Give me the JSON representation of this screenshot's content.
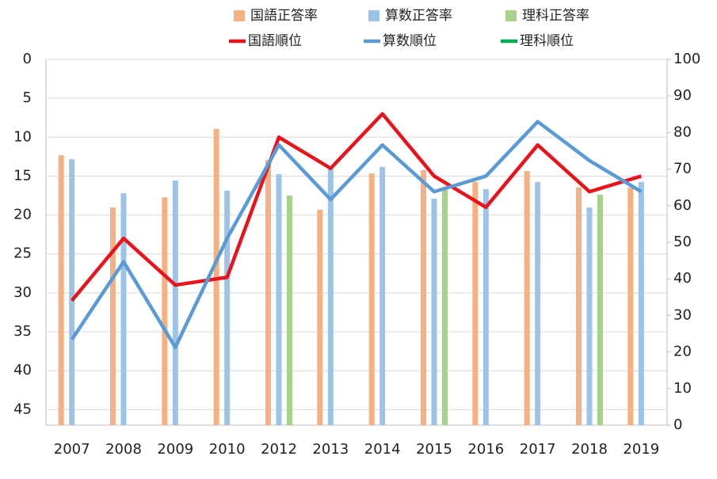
{
  "chart_data": {
    "type": "combo",
    "categories": [
      "2007",
      "2008",
      "2009",
      "2010",
      "2012",
      "2013",
      "2014",
      "2015",
      "2016",
      "2017",
      "2018",
      "2019"
    ],
    "ylim": [
      0,
      47
    ],
    "y_inverted": true,
    "yticks": [
      0,
      5,
      10,
      15,
      20,
      25,
      30,
      35,
      40,
      45
    ],
    "y2lim": [
      0,
      100
    ],
    "y2ticks": [
      0,
      10,
      20,
      30,
      40,
      50,
      60,
      70,
      80,
      90,
      100
    ],
    "grid": true,
    "series": [
      {
        "name": "国語正答率",
        "type": "bar",
        "axis": "y2",
        "color": "#f4b183",
        "values": [
          73.8,
          59.5,
          62.3,
          81,
          72.5,
          58.9,
          68.8,
          69.7,
          66.5,
          69.5,
          65,
          65
        ]
      },
      {
        "name": "算数正答率",
        "type": "bar",
        "axis": "y2",
        "color": "#9dc3e6",
        "values": [
          72.7,
          63.4,
          66.9,
          64.1,
          68.6,
          70.5,
          70.6,
          61.9,
          64.5,
          66.5,
          59.5,
          66.5
        ]
      },
      {
        "name": "理科正答率",
        "type": "bar",
        "axis": "y2",
        "color": "#a9d18e",
        "values": [
          null,
          null,
          null,
          null,
          62.8,
          null,
          null,
          64.3,
          null,
          null,
          63,
          null
        ]
      },
      {
        "name": "国語順位",
        "type": "line",
        "axis": "y",
        "color": "#e8141b",
        "values": [
          31,
          23,
          29,
          28,
          10,
          14,
          7,
          15,
          19,
          11,
          17,
          15
        ]
      },
      {
        "name": "算数順位",
        "type": "line",
        "axis": "y",
        "color": "#5b9bd5",
        "values": [
          36,
          26,
          37,
          23,
          11,
          18,
          11,
          17,
          15,
          8,
          13,
          17
        ]
      },
      {
        "name": "理科順位",
        "type": "line",
        "axis": "y",
        "color": "#00b050",
        "values": [
          null,
          null,
          null,
          null,
          null,
          null,
          null,
          null,
          null,
          null,
          null,
          null
        ]
      }
    ]
  }
}
